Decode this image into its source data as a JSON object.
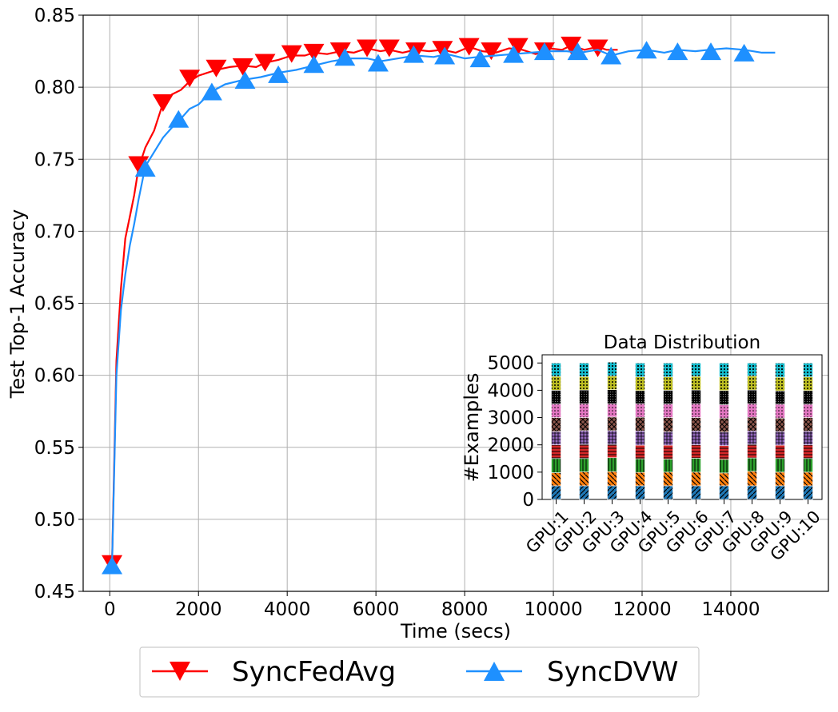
{
  "chart_data": [
    {
      "type": "line",
      "xlabel": "Time (secs)",
      "ylabel": "Test Top-1 Accuracy",
      "xlim": [
        -600,
        16200
      ],
      "ylim": [
        0.45,
        0.85
      ],
      "xticks": [
        0,
        2000,
        4000,
        6000,
        8000,
        10000,
        12000,
        14000
      ],
      "yticks": [
        0.45,
        0.5,
        0.55,
        0.6,
        0.65,
        0.7,
        0.75,
        0.8,
        0.85
      ],
      "ytick_labels": [
        "0.45",
        "0.50",
        "0.55",
        "0.60",
        "0.65",
        "0.70",
        "0.75",
        "0.80",
        "0.85"
      ],
      "grid": true,
      "legend_position": "bottom-outside",
      "series": [
        {
          "name": "SyncFedAvg",
          "color": "#ff0000",
          "marker": "triangle-down",
          "x": [
            50,
            150,
            250,
            350,
            450,
            550,
            650,
            800,
            1000,
            1200,
            1400,
            1600,
            1800,
            2000,
            2200,
            2400,
            2700,
            3000,
            3300,
            3500,
            3800,
            4100,
            4400,
            4600,
            4900,
            5200,
            5500,
            5800,
            6100,
            6300,
            6600,
            6900,
            7200,
            7500,
            7800,
            8100,
            8400,
            8700,
            9000,
            9300,
            9600,
            9900,
            10200,
            10400,
            10700,
            11000,
            11200,
            11450
          ],
          "y": [
            0.469,
            0.61,
            0.66,
            0.695,
            0.71,
            0.725,
            0.744,
            0.758,
            0.77,
            0.789,
            0.795,
            0.798,
            0.804,
            0.808,
            0.81,
            0.812,
            0.814,
            0.815,
            0.814,
            0.817,
            0.819,
            0.822,
            0.822,
            0.824,
            0.823,
            0.825,
            0.824,
            0.827,
            0.825,
            0.826,
            0.824,
            0.826,
            0.825,
            0.826,
            0.824,
            0.828,
            0.825,
            0.824,
            0.827,
            0.826,
            0.823,
            0.827,
            0.826,
            0.829,
            0.826,
            0.828,
            0.826,
            0.826
          ],
          "marker_x": [
            50,
            650,
            1200,
            1800,
            2400,
            3000,
            3500,
            4100,
            4600,
            5200,
            5800,
            6300,
            6900,
            7500,
            8100,
            8600,
            9200,
            9800,
            10400,
            11000
          ],
          "marker_y": [
            0.469,
            0.746,
            0.789,
            0.806,
            0.813,
            0.814,
            0.817,
            0.823,
            0.824,
            0.825,
            0.827,
            0.827,
            0.825,
            0.826,
            0.828,
            0.825,
            0.828,
            0.825,
            0.829,
            0.827
          ]
        },
        {
          "name": "SyncDVW",
          "color": "#1e90ff",
          "marker": "triangle-up",
          "x": [
            50,
            150,
            250,
            350,
            450,
            550,
            650,
            800,
            1000,
            1200,
            1400,
            1600,
            1800,
            2000,
            2300,
            2600,
            3000,
            3400,
            3800,
            4200,
            4600,
            5000,
            5400,
            5800,
            6100,
            6500,
            6900,
            7300,
            7600,
            8000,
            8300,
            8700,
            9100,
            9500,
            9900,
            10300,
            10600,
            11000,
            11300,
            11700,
            12100,
            12500,
            12800,
            13200,
            13500,
            13900,
            14300,
            14700,
            15000
          ],
          "y": [
            0.468,
            0.6,
            0.645,
            0.67,
            0.69,
            0.705,
            0.722,
            0.745,
            0.755,
            0.765,
            0.772,
            0.778,
            0.785,
            0.788,
            0.797,
            0.802,
            0.805,
            0.807,
            0.81,
            0.812,
            0.815,
            0.818,
            0.82,
            0.82,
            0.818,
            0.82,
            0.822,
            0.821,
            0.823,
            0.82,
            0.821,
            0.822,
            0.823,
            0.824,
            0.825,
            0.825,
            0.824,
            0.826,
            0.822,
            0.825,
            0.826,
            0.824,
            0.826,
            0.825,
            0.826,
            0.827,
            0.826,
            0.824,
            0.824
          ],
          "marker_x": [
            50,
            800,
            1550,
            2300,
            3050,
            3800,
            4600,
            5300,
            6050,
            6850,
            7550,
            8350,
            9100,
            9800,
            10550,
            11300,
            12100,
            12800,
            13550,
            14300
          ],
          "marker_y": [
            0.468,
            0.744,
            0.778,
            0.797,
            0.805,
            0.809,
            0.816,
            0.821,
            0.817,
            0.823,
            0.822,
            0.82,
            0.823,
            0.825,
            0.825,
            0.822,
            0.826,
            0.825,
            0.825,
            0.824
          ]
        }
      ]
    },
    {
      "type": "bar",
      "title": "Data Distribution",
      "ylabel": "#Examples",
      "ylim": [
        0,
        5300
      ],
      "yticks": [
        0,
        1000,
        2000,
        3000,
        4000,
        5000
      ],
      "categories": [
        "GPU:1",
        "GPU:2",
        "GPU:3",
        "GPU:4",
        "GPU:5",
        "GPU:6",
        "GPU:7",
        "GPU:8",
        "GPU:9",
        "GPU:10"
      ],
      "stacked": true,
      "segment_colors": [
        "#1f77b4",
        "#ff7f0e",
        "#2ca02c",
        "#d62728",
        "#9467bd",
        "#8c564b",
        "#e377c2",
        "#7f7f7f",
        "#bcbd22",
        "#17becf"
      ],
      "segment_values": [
        [
          500,
          500,
          500,
          500,
          500,
          500,
          500,
          500,
          500,
          500
        ],
        [
          480,
          510,
          520,
          490,
          500,
          500,
          470,
          530,
          500,
          500
        ],
        [
          520,
          490,
          510,
          500,
          480,
          510,
          500,
          490,
          500,
          500
        ],
        [
          500,
          520,
          490,
          500,
          510,
          490,
          500,
          500,
          490,
          500
        ],
        [
          490,
          500,
          500,
          520,
          490,
          510,
          500,
          490,
          500,
          500
        ],
        [
          510,
          480,
          500,
          500,
          520,
          490,
          510,
          500,
          490,
          500
        ],
        [
          500,
          510,
          490,
          500,
          500,
          510,
          490,
          500,
          510,
          490
        ],
        [
          500,
          500,
          510,
          480,
          500,
          500,
          520,
          500,
          490,
          500
        ],
        [
          510,
          490,
          500,
          500,
          490,
          500,
          500,
          510,
          500,
          500
        ],
        [
          490,
          500,
          510,
          510,
          510,
          490,
          510,
          480,
          520,
          510
        ]
      ]
    }
  ]
}
